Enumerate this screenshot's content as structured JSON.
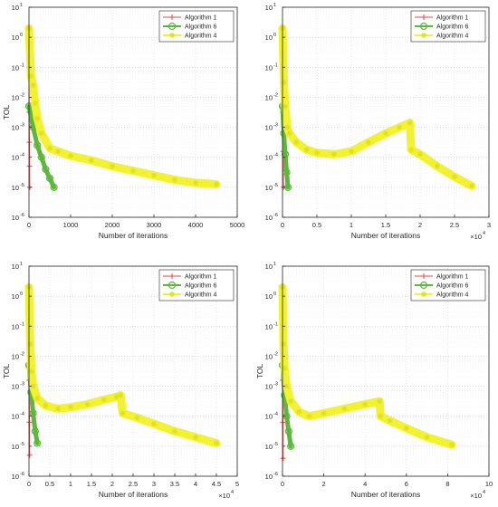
{
  "colors": {
    "algorithm_1": "#e8453c",
    "algorithm_6": "#5cb83c",
    "algorithm_4": "#f2f230",
    "axes": "#262626",
    "grid": "#cfcfcf"
  },
  "chart_data": [
    {
      "type": "line",
      "ylabel": "TOL",
      "xlabel": "Number of iterations",
      "x_exponent": "",
      "xlim": [
        0,
        5000
      ],
      "xticks": [
        0,
        1000,
        2000,
        3000,
        4000,
        5000
      ],
      "xtick_labels": [
        "0",
        "1000",
        "2000",
        "3000",
        "4000",
        "5000"
      ],
      "y_scale": "log",
      "ylim_exp": [
        -6,
        1
      ],
      "ytick_labels": [
        "10",
        "10",
        "10",
        "10",
        "10",
        "10",
        "10",
        "10"
      ],
      "ytick_exponents": [
        "-6",
        "-5",
        "-4",
        "-3",
        "-2",
        "-1",
        "0",
        "1"
      ],
      "grid": true,
      "legend_position": "top-right",
      "series": [
        {
          "name": "Algorithm  1",
          "marker": "plus",
          "x": [
            0,
            5,
            10,
            15,
            20
          ],
          "y_exp": [
            -1.0,
            -2.5,
            -3.5,
            -4.3,
            -5.0
          ]
        },
        {
          "name": "Algorithm 6",
          "marker": "circle",
          "x": [
            0,
            100,
            200,
            300,
            400,
            500,
            600
          ],
          "y_exp": [
            -2.3,
            -3.0,
            -3.6,
            -4.0,
            -4.4,
            -4.7,
            -5.0
          ]
        },
        {
          "name": "Algorithm 4",
          "marker": "star",
          "x": [
            0,
            50,
            100,
            150,
            200,
            300,
            500,
            700,
            1000,
            1500,
            2000,
            2500,
            3000,
            3500,
            4000,
            4500
          ],
          "y_exp": [
            0.3,
            -1.3,
            -1.6,
            -2.2,
            -2.7,
            -3.2,
            -3.7,
            -3.8,
            -3.95,
            -4.1,
            -4.3,
            -4.45,
            -4.6,
            -4.75,
            -4.85,
            -4.9
          ]
        }
      ]
    },
    {
      "type": "line",
      "ylabel": "",
      "xlabel": "Number of iterations",
      "x_exponent": "4",
      "xlim": [
        0,
        3
      ],
      "xticks": [
        0,
        0.5,
        1,
        1.5,
        2,
        2.5,
        3
      ],
      "xtick_labels": [
        "0",
        "0.5",
        "1",
        "1.5",
        "2",
        "2.5",
        "3"
      ],
      "y_scale": "log",
      "ylim_exp": [
        -6,
        1
      ],
      "ytick_labels": [
        "10",
        "10",
        "10",
        "10",
        "10",
        "10",
        "10",
        "10"
      ],
      "ytick_exponents": [
        "-6",
        "-5",
        "-4",
        "-3",
        "-2",
        "-1",
        "0",
        "1"
      ],
      "grid": true,
      "legend_position": "top-right",
      "series": [
        {
          "name": "Algorithm  1",
          "marker": "plus",
          "x": [
            0,
            0.005,
            0.01,
            0.015
          ],
          "y_exp": [
            -1.0,
            -2.5,
            -3.8,
            -5.0
          ]
        },
        {
          "name": "Algorithm 6",
          "marker": "circle",
          "x": [
            0,
            0.02,
            0.04,
            0.06,
            0.08
          ],
          "y_exp": [
            -2.3,
            -3.2,
            -3.9,
            -4.5,
            -5.0
          ]
        },
        {
          "name": "Algorithm 4",
          "marker": "star",
          "x": [
            0,
            0.02,
            0.04,
            0.07,
            0.1,
            0.2,
            0.35,
            0.5,
            0.75,
            1.0,
            1.25,
            1.5,
            1.7,
            1.85,
            1.87,
            2.0,
            2.25,
            2.5,
            2.75
          ],
          "y_exp": [
            0.3,
            -1.5,
            -2.3,
            -3.0,
            -3.2,
            -3.5,
            -3.75,
            -3.85,
            -3.9,
            -3.8,
            -3.5,
            -3.2,
            -3.0,
            -2.85,
            -3.75,
            -3.9,
            -4.3,
            -4.65,
            -4.95
          ]
        }
      ]
    },
    {
      "type": "line",
      "ylabel": "TOL",
      "xlabel": "Number of iterations",
      "x_exponent": "4",
      "xlim": [
        0,
        5
      ],
      "xticks": [
        0,
        0.5,
        1,
        1.5,
        2,
        2.5,
        3,
        3.5,
        4,
        4.5,
        5
      ],
      "xtick_labels": [
        "0",
        "0.5",
        "1",
        "1.5",
        "2",
        "2.5",
        "3",
        "3.5",
        "4",
        "4.5",
        "5"
      ],
      "y_scale": "log",
      "ylim_exp": [
        -6,
        1
      ],
      "ytick_labels": [
        "10",
        "10",
        "10",
        "10",
        "10",
        "10",
        "10",
        "10"
      ],
      "ytick_exponents": [
        "-6",
        "-5",
        "-4",
        "-3",
        "-2",
        "-1",
        "0",
        "1"
      ],
      "grid": true,
      "legend_position": "top-right",
      "series": [
        {
          "name": "Algorithm  1",
          "marker": "plus",
          "x": [
            0,
            0.005,
            0.01,
            0.015
          ],
          "y_exp": [
            -1.0,
            -2.8,
            -4.2,
            -5.3
          ]
        },
        {
          "name": "Algorithm 6",
          "marker": "circle",
          "x": [
            0,
            0.05,
            0.1,
            0.15,
            0.2
          ],
          "y_exp": [
            -2.3,
            -3.2,
            -3.9,
            -4.5,
            -4.9
          ]
        },
        {
          "name": "Algorithm 4",
          "marker": "star",
          "x": [
            0,
            0.03,
            0.06,
            0.1,
            0.2,
            0.4,
            0.7,
            1.0,
            1.4,
            1.8,
            2.1,
            2.2,
            2.25,
            2.6,
            3.0,
            3.5,
            4.0,
            4.5
          ],
          "y_exp": [
            0.3,
            -1.6,
            -2.5,
            -3.0,
            -3.4,
            -3.65,
            -3.75,
            -3.7,
            -3.6,
            -3.45,
            -3.35,
            -3.3,
            -3.9,
            -4.05,
            -4.25,
            -4.5,
            -4.7,
            -4.9
          ]
        }
      ]
    },
    {
      "type": "line",
      "ylabel": "TOL",
      "xlabel": "Number of iterations",
      "x_exponent": "4",
      "xlim": [
        0,
        10
      ],
      "xticks": [
        0,
        2,
        4,
        6,
        8,
        10
      ],
      "xtick_labels": [
        "0",
        "2",
        "4",
        "6",
        "8",
        "10"
      ],
      "y_scale": "log",
      "ylim_exp": [
        -6,
        1
      ],
      "ytick_labels": [
        "10",
        "10",
        "10",
        "10",
        "10",
        "10",
        "10",
        "10"
      ],
      "ytick_exponents": [
        "-6",
        "-5",
        "-4",
        "-3",
        "-2",
        "-1",
        "0",
        "1"
      ],
      "grid": true,
      "legend_position": "top-right",
      "series": [
        {
          "name": "Algorithm  1",
          "marker": "plus",
          "x": [
            0,
            0.01,
            0.02,
            0.03
          ],
          "y_exp": [
            -1.0,
            -2.8,
            -4.2,
            -5.4
          ]
        },
        {
          "name": "Algorithm 6",
          "marker": "circle",
          "x": [
            0,
            0.1,
            0.2,
            0.3,
            0.4
          ],
          "y_exp": [
            -2.3,
            -3.3,
            -4.0,
            -4.5,
            -5.0
          ]
        },
        {
          "name": "Algorithm 4",
          "marker": "star",
          "x": [
            0,
            0.05,
            0.1,
            0.2,
            0.4,
            0.8,
            1.3,
            2.0,
            3.0,
            4.0,
            4.7,
            4.75,
            5.2,
            6.0,
            7.0,
            8.2
          ],
          "y_exp": [
            0.3,
            -1.6,
            -2.4,
            -3.0,
            -3.5,
            -3.85,
            -4.0,
            -3.9,
            -3.75,
            -3.6,
            -3.5,
            -4.0,
            -4.15,
            -4.4,
            -4.7,
            -4.95
          ]
        }
      ]
    }
  ]
}
